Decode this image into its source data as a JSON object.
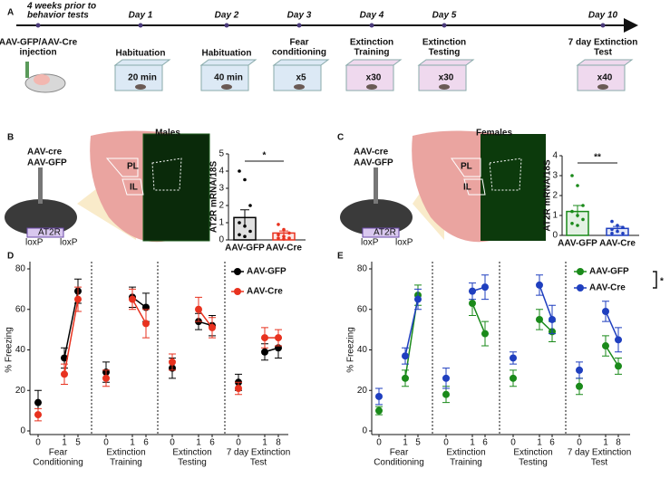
{
  "panel_labels": [
    "A",
    "B",
    "C",
    "D",
    "E"
  ],
  "timeline": {
    "steps": [
      {
        "day": [
          "4 weeks prior to",
          "behavior tests"
        ],
        "label": [
          "AAV-GFP/AAV-Cre",
          "injection"
        ]
      },
      {
        "day": "Day 1",
        "label": [
          "Habituation"
        ],
        "detail": "20 min"
      },
      {
        "day": "Day 2",
        "label": [
          "Habituation"
        ],
        "detail": "40 min"
      },
      {
        "day": "Day 3",
        "label": [
          "Fear",
          "conditioning"
        ],
        "detail": "x5"
      },
      {
        "day": "Day 4",
        "label": [
          "Extinction",
          "Training"
        ],
        "detail": "x30"
      },
      {
        "day": "Day 5",
        "label": [
          "Extinction",
          "Testing"
        ],
        "detail": "x30"
      },
      {
        "day": "Day 10",
        "label": [
          "7 day Extinction",
          "Test"
        ],
        "detail": "x40"
      }
    ]
  },
  "schematic_b": {
    "title": "Males",
    "virus": [
      "AAV-cre",
      "AAV-GFP"
    ],
    "regions": [
      "PL",
      "IL"
    ],
    "construct": [
      "loxP",
      "AT2R",
      "loxP"
    ]
  },
  "schematic_c": {
    "title": "Females",
    "virus": [
      "AAV-cre",
      "AAV-GFP"
    ],
    "regions": [
      "PL",
      "IL"
    ],
    "construct": [
      "loxP",
      "AT2R",
      "loxP"
    ]
  },
  "chart_data": [
    {
      "type": "bar",
      "ylabel": "AT2R mRNA/18S",
      "categories": [
        "AAV-GFP",
        "AAV-Cre"
      ],
      "values": [
        1.3,
        0.4
      ],
      "errors": [
        0.45,
        0.12
      ],
      "colors": [
        "#000000",
        "#e8321f"
      ],
      "points": [
        [
          4.0,
          3.5,
          2.0,
          1.0,
          0.8,
          0.5,
          0.3,
          0.2
        ],
        [
          0.9,
          0.6,
          0.4,
          0.3,
          0.2,
          0.1,
          0.1,
          0.05
        ]
      ],
      "ylim": [
        0,
        5
      ],
      "yticks": [
        0,
        1,
        2,
        3,
        4,
        5
      ],
      "annotation": "*"
    },
    {
      "type": "bar",
      "ylabel": "AT2R mRNA/18S",
      "categories": [
        "AAV-GFP",
        "AAV-Cre"
      ],
      "values": [
        1.2,
        0.35
      ],
      "errors": [
        0.3,
        0.1
      ],
      "colors": [
        "#1a8a1a",
        "#1f3fbf"
      ],
      "points": [
        [
          3.0,
          2.5,
          1.5,
          1.2,
          1.0,
          0.8,
          0.6,
          0.5
        ],
        [
          0.7,
          0.5,
          0.4,
          0.3,
          0.2,
          0.1,
          0.1
        ]
      ],
      "ylim": [
        0,
        4
      ],
      "yticks": [
        0,
        1,
        2,
        3,
        4
      ],
      "annotation": "**"
    },
    {
      "type": "line",
      "ylabel": "% Freezing",
      "groups": [
        [
          "Fear",
          "Conditioning"
        ],
        [
          "Extinction",
          "Training"
        ],
        [
          "Extinction",
          "Testing"
        ],
        [
          "7 day Extinction",
          "Test"
        ]
      ],
      "categories": [
        "0",
        "1",
        "5",
        "0",
        "1",
        "6",
        "0",
        "1",
        "6",
        "0",
        "1",
        "8"
      ],
      "series": [
        {
          "name": "AAV-GFP",
          "color": "#000000",
          "values": [
            14,
            36,
            69,
            29,
            66,
            61,
            31,
            54,
            52,
            24,
            39,
            41
          ],
          "errors": [
            6,
            5,
            6,
            5,
            5,
            7,
            5,
            4,
            5,
            4,
            4,
            5
          ]
        },
        {
          "name": "AAV-Cre",
          "color": "#e8321f",
          "values": [
            8,
            28,
            65,
            26,
            65,
            53,
            34,
            60,
            51,
            21,
            46,
            46
          ],
          "errors": [
            3,
            5,
            6,
            4,
            5,
            7,
            4,
            6,
            5,
            3,
            5,
            4
          ]
        }
      ],
      "ylim": [
        0,
        80
      ],
      "yticks": [
        0,
        20,
        40,
        60,
        80
      ]
    },
    {
      "type": "line",
      "ylabel": "% Freezing",
      "groups": [
        [
          "Fear",
          "Conditioning"
        ],
        [
          "Extinction",
          "Training"
        ],
        [
          "Extinction",
          "Testing"
        ],
        [
          "7 day Extinction",
          "Test"
        ]
      ],
      "categories": [
        "0",
        "1",
        "5",
        "0",
        "1",
        "6",
        "0",
        "1",
        "6",
        "0",
        "1",
        "8"
      ],
      "series": [
        {
          "name": "AAV-GFP",
          "color": "#1a8a1a",
          "values": [
            10,
            26,
            67,
            18,
            63,
            48,
            26,
            55,
            49,
            22,
            42,
            32
          ],
          "errors": [
            2,
            4,
            5,
            4,
            6,
            6,
            4,
            5,
            5,
            4,
            5,
            4
          ]
        },
        {
          "name": "AAV-Cre",
          "color": "#1f3fbf",
          "values": [
            17,
            37,
            65,
            26,
            69,
            71,
            36,
            72,
            55,
            30,
            59,
            45
          ],
          "errors": [
            4,
            4,
            5,
            5,
            4,
            6,
            3,
            5,
            7,
            4,
            5,
            6
          ]
        }
      ],
      "ylim": [
        0,
        80
      ],
      "yticks": [
        0,
        20,
        40,
        60,
        80
      ],
      "annotation": "*"
    }
  ]
}
